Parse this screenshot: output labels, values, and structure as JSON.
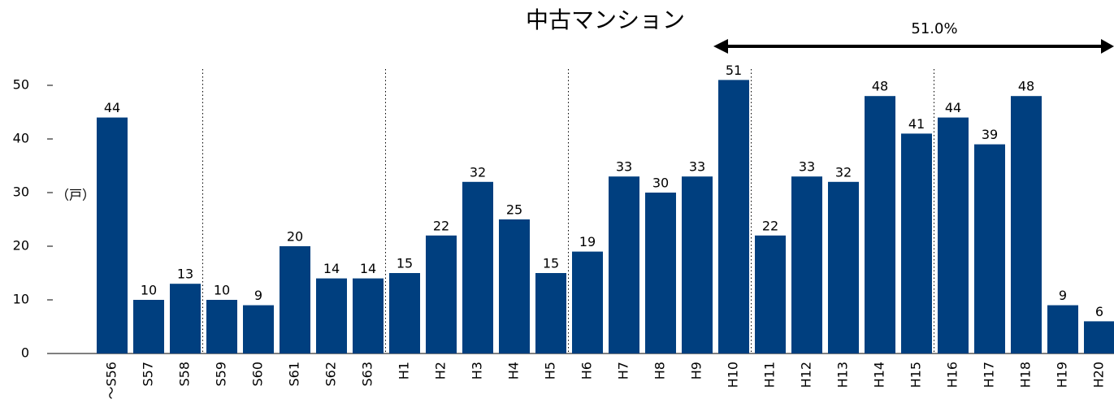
{
  "chart_data": {
    "type": "bar",
    "title": "中古マンション",
    "y_label": "（戸）",
    "annotation": "51.0%",
    "categories": [
      "～S56",
      "S57",
      "S58",
      "S59",
      "S60",
      "S61",
      "S62",
      "S63",
      "H1",
      "H2",
      "H3",
      "H4",
      "H5",
      "H6",
      "H7",
      "H8",
      "H9",
      "H10",
      "H11",
      "H12",
      "H13",
      "H14",
      "H15",
      "H16",
      "H17",
      "H18",
      "H19",
      "H20"
    ],
    "values": [
      44,
      10,
      13,
      10,
      9,
      20,
      14,
      14,
      15,
      22,
      32,
      25,
      15,
      19,
      33,
      30,
      33,
      51,
      22,
      33,
      32,
      48,
      41,
      44,
      39,
      48,
      9,
      6
    ],
    "color": "#003f7f",
    "ylim": [
      0,
      55
    ],
    "yticks": [
      0,
      10,
      20,
      30,
      40,
      50
    ],
    "grid": false
  }
}
